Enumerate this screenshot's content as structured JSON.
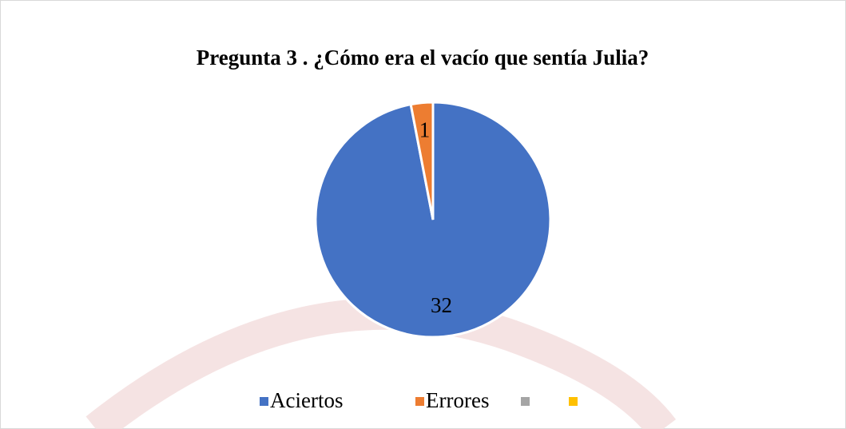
{
  "chart_data": {
    "type": "pie",
    "title": "Pregunta 3 . ¿Cómo era el vacío que sentía Julia?",
    "categories": [
      "Aciertos",
      "Errores",
      null,
      null
    ],
    "values": [
      32,
      1,
      0,
      0
    ],
    "colors": [
      "#4472c4",
      "#ed7d31",
      "#a5a5a5",
      "#ffc000"
    ],
    "legend": "bottom"
  }
}
